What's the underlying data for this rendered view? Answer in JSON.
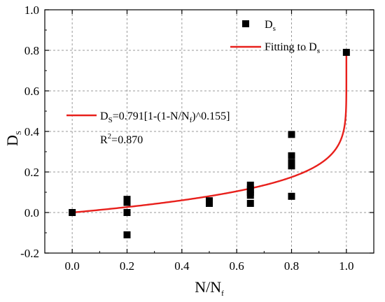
{
  "chart_data": {
    "type": "scatter",
    "xlabel_main": "N/N",
    "xlabel_sub": "f",
    "ylabel_main": "D",
    "ylabel_sub": "S",
    "xlim": [
      -0.1,
      1.1
    ],
    "ylim": [
      -0.2,
      1.0
    ],
    "x_ticks": [
      0.0,
      0.2,
      0.4,
      0.6,
      0.8,
      1.0
    ],
    "x_tick_labels": [
      "0.0",
      "0.2",
      "0.4",
      "0.6",
      "0.8",
      "1.0"
    ],
    "y_ticks": [
      -0.2,
      0.0,
      0.2,
      0.4,
      0.6,
      0.8,
      1.0
    ],
    "y_tick_labels": [
      "-0.2",
      "0.0",
      "0.2",
      "0.4",
      "0.6",
      "0.8",
      "1.0"
    ],
    "grid": true,
    "legend_position": "top-right",
    "series": [
      {
        "name_main": "D",
        "name_sub": "s",
        "kind": "scatter",
        "marker": "square",
        "color": "#000000",
        "points": [
          [
            0.0,
            0.0
          ],
          [
            0.2,
            0.065
          ],
          [
            0.2,
            0.05
          ],
          [
            0.2,
            0.0
          ],
          [
            0.2,
            -0.11
          ],
          [
            0.5,
            0.058
          ],
          [
            0.5,
            0.045
          ],
          [
            0.65,
            0.135
          ],
          [
            0.65,
            0.115
          ],
          [
            0.65,
            0.1
          ],
          [
            0.65,
            0.085
          ],
          [
            0.65,
            0.045
          ],
          [
            0.8,
            0.385
          ],
          [
            0.8,
            0.28
          ],
          [
            0.8,
            0.245
          ],
          [
            0.8,
            0.23
          ],
          [
            0.8,
            0.08
          ],
          [
            1.0,
            0.79
          ]
        ]
      },
      {
        "name_main": "Fitting to D",
        "name_sub": "s",
        "kind": "line",
        "color": "#e8201c",
        "function": "0.791*(1-(1-x)^0.155)",
        "x_range": [
          0.0,
          1.0
        ]
      }
    ],
    "annotation": {
      "eq_a": "D",
      "eq_a_sub": "S",
      "eq_b": "=0.791[1-(1-N/N",
      "eq_b_sub": "f",
      "eq_c": ")^0.155]",
      "r2_a": "R",
      "r2_sup": "2",
      "r2_b": "=0.870"
    }
  }
}
